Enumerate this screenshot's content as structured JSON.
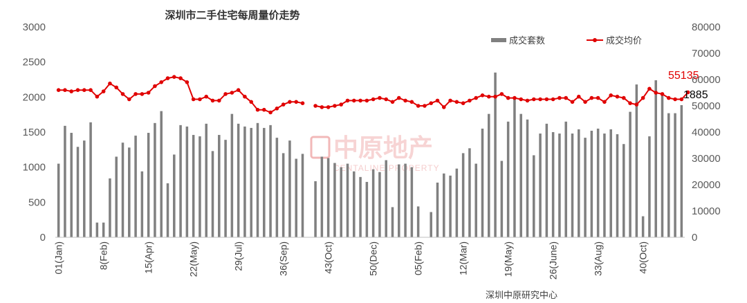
{
  "chart_data": {
    "type": "bar+line",
    "title": "深圳市二手住宅每周量价走势",
    "source": "深圳中原研究中心",
    "watermark": {
      "cn": "中原地产",
      "en": "CENTALINE PROPERTY"
    },
    "y_left": {
      "min": 0,
      "max": 3000,
      "ticks": [
        0,
        500,
        1000,
        1500,
        2000,
        2500,
        3000
      ]
    },
    "y_right": {
      "min": 0,
      "max": 80000,
      "ticks": [
        0,
        10000,
        20000,
        30000,
        40000,
        50000,
        60000,
        70000,
        80000
      ]
    },
    "x_tick_labels": [
      {
        "index": 0,
        "label": "01(Jan)"
      },
      {
        "index": 7,
        "label": "8(Feb)"
      },
      {
        "index": 14,
        "label": "15(Apr)"
      },
      {
        "index": 21,
        "label": "22(May)"
      },
      {
        "index": 28,
        "label": "29(Jul)"
      },
      {
        "index": 35,
        "label": "36(Sep)"
      },
      {
        "index": 42,
        "label": "43(Oct)"
      },
      {
        "index": 49,
        "label": "50(Dec)"
      },
      {
        "index": 56,
        "label": "05(Feb)"
      },
      {
        "index": 63,
        "label": "12(Mar)"
      },
      {
        "index": 70,
        "label": "19(May)"
      },
      {
        "index": 77,
        "label": "26(June)"
      },
      {
        "index": 84,
        "label": "33(Aug)"
      },
      {
        "index": 91,
        "label": "40(Oct)"
      }
    ],
    "series": [
      {
        "name": "成交套数",
        "axis": "left",
        "kind": "bar",
        "color": "#808080",
        "values": [
          1050,
          1590,
          1490,
          1290,
          1380,
          1640,
          210,
          210,
          840,
          1150,
          1350,
          1280,
          1450,
          940,
          1490,
          1630,
          1800,
          770,
          1180,
          1600,
          1580,
          1460,
          1440,
          1620,
          1230,
          1460,
          1390,
          1760,
          1620,
          1580,
          1560,
          1630,
          1560,
          1600,
          1420,
          1200,
          1380,
          1120,
          1190,
          null,
          800,
          1150,
          1130,
          1060,
          1000,
          1050,
          940,
          860,
          790,
          970,
          930,
          1100,
          430,
          1040,
          1050,
          1000,
          440,
          null,
          360,
          780,
          910,
          880,
          980,
          1200,
          1270,
          1050,
          1550,
          1760,
          2350,
          1090,
          1650,
          1980,
          1760,
          1680,
          1170,
          1480,
          1620,
          1500,
          1480,
          1650,
          1480,
          1540,
          1420,
          1520,
          1550,
          1480,
          1540,
          1470,
          1330,
          1790,
          2180,
          300,
          1440,
          2240,
          2040,
          1770,
          1770,
          1885
        ]
      },
      {
        "name": "成交均价",
        "axis": "right",
        "kind": "line",
        "color": "#e00000",
        "values": [
          56000,
          56000,
          55500,
          56000,
          56000,
          56000,
          53500,
          55500,
          58500,
          57000,
          54500,
          52500,
          54500,
          54500,
          55000,
          57500,
          59000,
          60500,
          61000,
          60500,
          59000,
          52500,
          52500,
          53500,
          52000,
          52000,
          54500,
          55000,
          56000,
          53500,
          51500,
          48500,
          48500,
          47500,
          49000,
          50500,
          51500,
          51500,
          51000,
          null,
          50000,
          49500,
          49500,
          50000,
          50500,
          52000,
          52000,
          52000,
          52000,
          52500,
          53000,
          52500,
          51500,
          53000,
          52000,
          51500,
          50000,
          50000,
          51000,
          52000,
          49500,
          52000,
          51500,
          51000,
          52000,
          53000,
          54000,
          53500,
          53500,
          54500,
          53000,
          53000,
          52500,
          52000,
          52500,
          52500,
          52500,
          52500,
          53000,
          53000,
          51500,
          53500,
          51500,
          53000,
          53000,
          51500,
          54000,
          53500,
          53000,
          51000,
          50500,
          53000,
          56500,
          55000,
          54500,
          53000,
          52500,
          52500,
          55135
        ]
      }
    ],
    "data_labels": {
      "last_avg_price": "55135",
      "last_volume": "1885"
    }
  }
}
